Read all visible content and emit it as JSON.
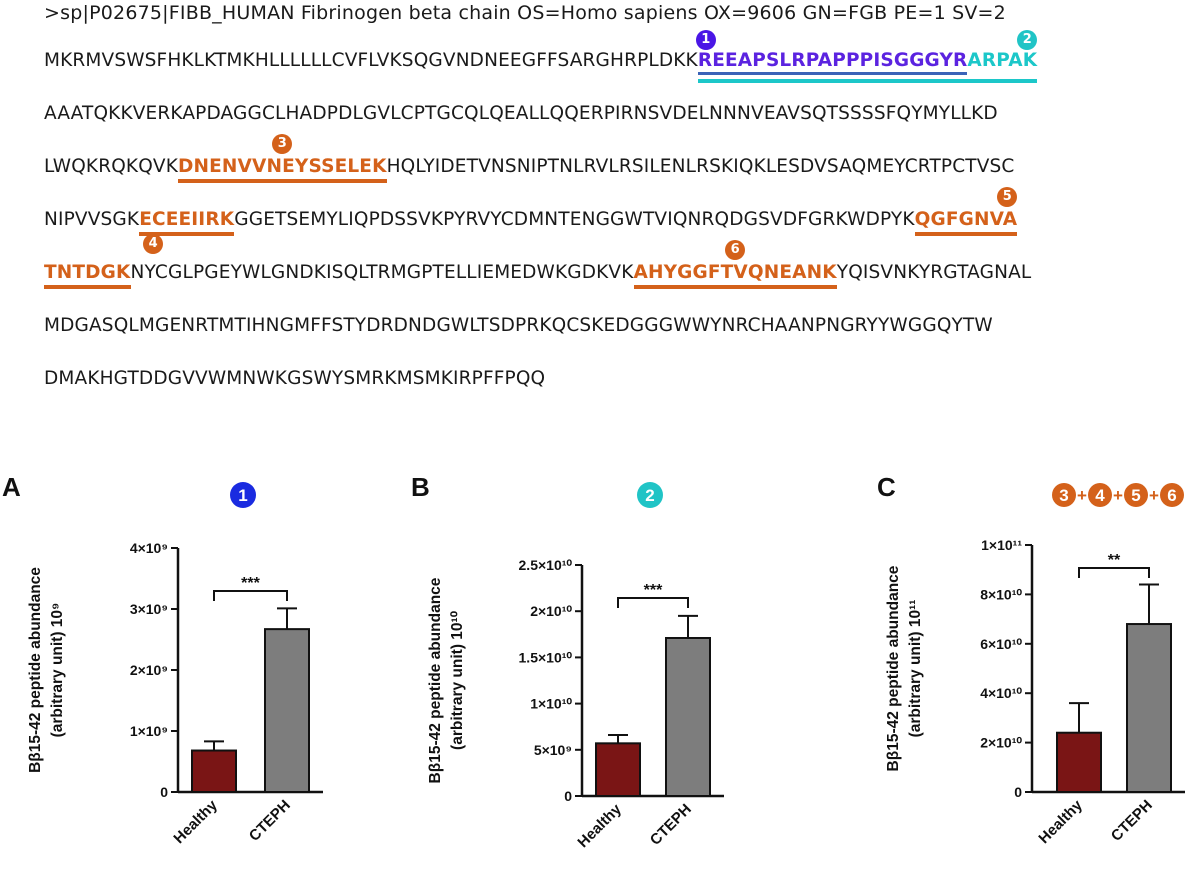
{
  "sequence": {
    "header": ">sp|P02675|FIBB_HUMAN Fibrinogen beta chain OS=Homo sapiens OX=9606 GN=FGB PE=1 SV=2",
    "lines": [
      {
        "segments": [
          {
            "text": "MKRMVSWSFHKLKTMKHLLLLLLCVFLVKSQGVNDNEEGFFSARGHRPLDKK",
            "style": "plain"
          },
          {
            "text": "REEAPSLRPAPPPISGGGYR",
            "style": "purple"
          },
          {
            "text": "ARPAK",
            "style": "cyan"
          }
        ]
      },
      {
        "segments": [
          {
            "text": "AAATQKKVERKAPDAGGCLHADPDLGVLCPTGCQLQEALLQQERPIRNSVDELNNNVEAVSQTSSSSFQYMYLLKD",
            "style": "plain"
          }
        ]
      },
      {
        "segments": [
          {
            "text": "LWQKRQKQVK",
            "style": "plain"
          },
          {
            "text": "DNENVVNEYSSELEK",
            "style": "orange"
          },
          {
            "text": "HQLYIDETVNSNIPTNLRVLRSILENLRSKIQKLESDVSAQMEYCRTPCTVSC",
            "style": "plain"
          }
        ]
      },
      {
        "segments": [
          {
            "text": "NIPVVSGK",
            "style": "plain"
          },
          {
            "text": "ECEEIIRK",
            "style": "orange"
          },
          {
            "text": "GGETSEMYLIQPDSSVKPYRVYCDMNTENGGWTVIQNRQDGSVDFGRKWDPYK",
            "style": "plain"
          },
          {
            "text": "QGFGNVA",
            "style": "orange"
          }
        ]
      },
      {
        "segments": [
          {
            "text": "TNTDGK",
            "style": "orange"
          },
          {
            "text": "NYCGLPGEYWLGNDKISQLTRMGPTELLIEMEDWKGDKVK",
            "style": "plain"
          },
          {
            "text": "AHYGGFTVQNEANK",
            "style": "orange"
          },
          {
            "text": "YQISVNKYRGTAGNAL",
            "style": "plain"
          }
        ]
      },
      {
        "segments": [
          {
            "text": "MDGASQLMGENRTMTIHNGMFFSTYDRDNDGWLTSDPRKQCSKEDGGGWWYNRCHAANPNGRYYWGGQYTW",
            "style": "plain"
          }
        ]
      },
      {
        "segments": [
          {
            "text": "DMAKHGTDDGVVWMNWKGSWYSMRKMSMKIRPFFPQQ",
            "style": "plain"
          }
        ]
      }
    ],
    "markers": [
      "1",
      "2",
      "3",
      "4",
      "5",
      "6"
    ]
  },
  "panels": [
    {
      "letter": "A",
      "heading_marker": "1",
      "heading_color": "#1a2be0"
    },
    {
      "letter": "B",
      "heading_marker": "2",
      "heading_color": "#20c4c6"
    },
    {
      "letter": "C",
      "heading_markers": [
        "3",
        "4",
        "5",
        "6"
      ],
      "heading_sep": "+",
      "heading_color": "#d4611a"
    }
  ],
  "chart_data": [
    {
      "type": "bar",
      "categories": [
        "Healthy",
        "CTEPH"
      ],
      "values": [
        0.68,
        2.67
      ],
      "error": [
        0.15,
        0.34
      ],
      "colors": [
        "#7a1515",
        "#7d7d7d"
      ],
      "ylim": [
        0,
        4
      ],
      "yticks": [
        "0",
        "1×10⁹",
        "2×10⁹",
        "3×10⁹",
        "4×10⁹"
      ],
      "ylabel_line1": "Bβ15-42 peptide abundance",
      "ylabel_line2": "(arbitrary unit) 10⁹",
      "significance": "***"
    },
    {
      "type": "bar",
      "categories": [
        "Healthy",
        "CTEPH"
      ],
      "values": [
        5.7,
        17.1
      ],
      "error": [
        0.9,
        2.4
      ],
      "colors": [
        "#7a1515",
        "#7d7d7d"
      ],
      "ylim": [
        0,
        25
      ],
      "yticks": [
        "0",
        "5×10⁹",
        "1×10¹⁰",
        "1.5×10¹⁰",
        "2×10¹⁰",
        "2.5×10¹⁰"
      ],
      "ylabel_line1": "Bβ15-42 peptide abundance",
      "ylabel_line2": "(arbitrary unit) 10¹⁰",
      "significance": "***"
    },
    {
      "type": "bar",
      "categories": [
        "Healthy",
        "CTEPH"
      ],
      "values": [
        2.4,
        6.8
      ],
      "error": [
        1.2,
        1.6
      ],
      "colors": [
        "#7a1515",
        "#7d7d7d"
      ],
      "ylim": [
        0,
        10
      ],
      "yticks": [
        "0",
        "2×10¹⁰",
        "4×10¹⁰",
        "6×10¹⁰",
        "8×10¹⁰",
        "1×10¹¹"
      ],
      "ylabel_line1": "Bβ15-42 peptide abundance",
      "ylabel_line2": "(arbitrary unit) 10¹¹",
      "significance": "**"
    }
  ]
}
